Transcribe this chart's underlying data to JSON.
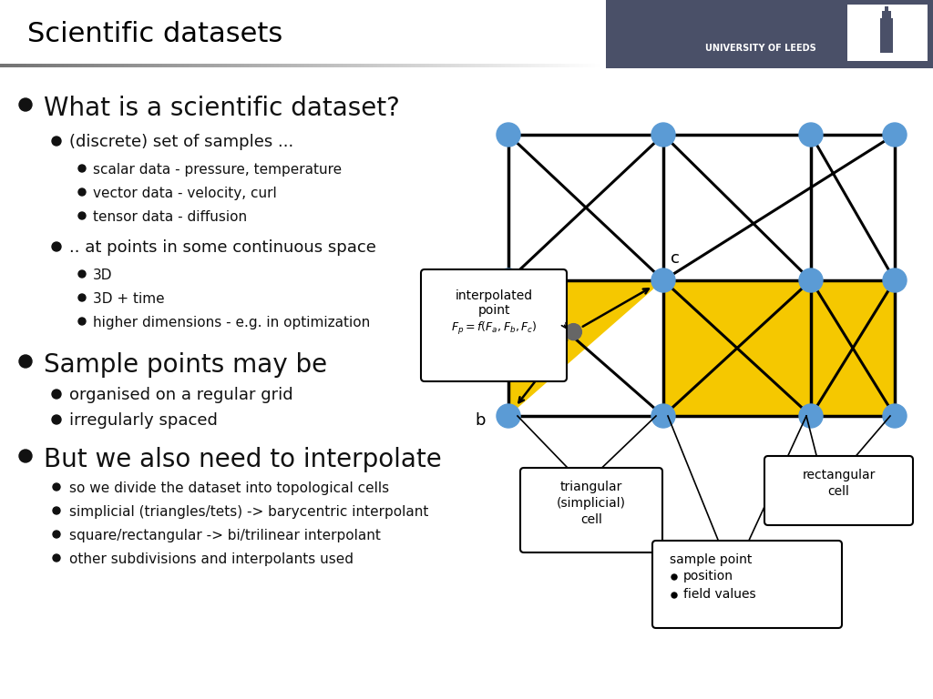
{
  "title": "Scientific datasets",
  "bg_color": "#ffffff",
  "header_bar_color": "#4a5068",
  "title_color": "#000000",
  "title_fontsize": 22,
  "bullet1": "What is a scientific dataset?",
  "bullet1_fontsize": 20,
  "sub1_1": "(discrete) set of samples ...",
  "sub1_1a": "scalar data - pressure, temperature",
  "sub1_1b": "vector data - velocity, curl",
  "sub1_1c": "tensor data - diffusion",
  "sub1_2": ".. at points in some continuous space",
  "sub1_2a": "3D",
  "sub1_2b": "3D + time",
  "sub1_2c": "higher dimensions - e.g. in optimization",
  "bullet2": "Sample points may be",
  "bullet2_fontsize": 20,
  "sub2_1": "organised on a regular grid",
  "sub2_2": "irregularly spaced",
  "bullet3": "But we also need to interpolate",
  "bullet3_fontsize": 20,
  "sub3_1": "so we divide the dataset into topological cells",
  "sub3_2": "simplicial (triangles/tets) -> barycentric interpolant",
  "sub3_3": "square/rectangular -> bi/trilinear interpolant",
  "sub3_4": "other subdivisions and interpolants used",
  "node_color": "#5b9bd5",
  "yellow_fill": "#f5c800",
  "interp_node_color": "#666666",
  "sub_fontsize": 13,
  "subsub_fontsize": 11
}
